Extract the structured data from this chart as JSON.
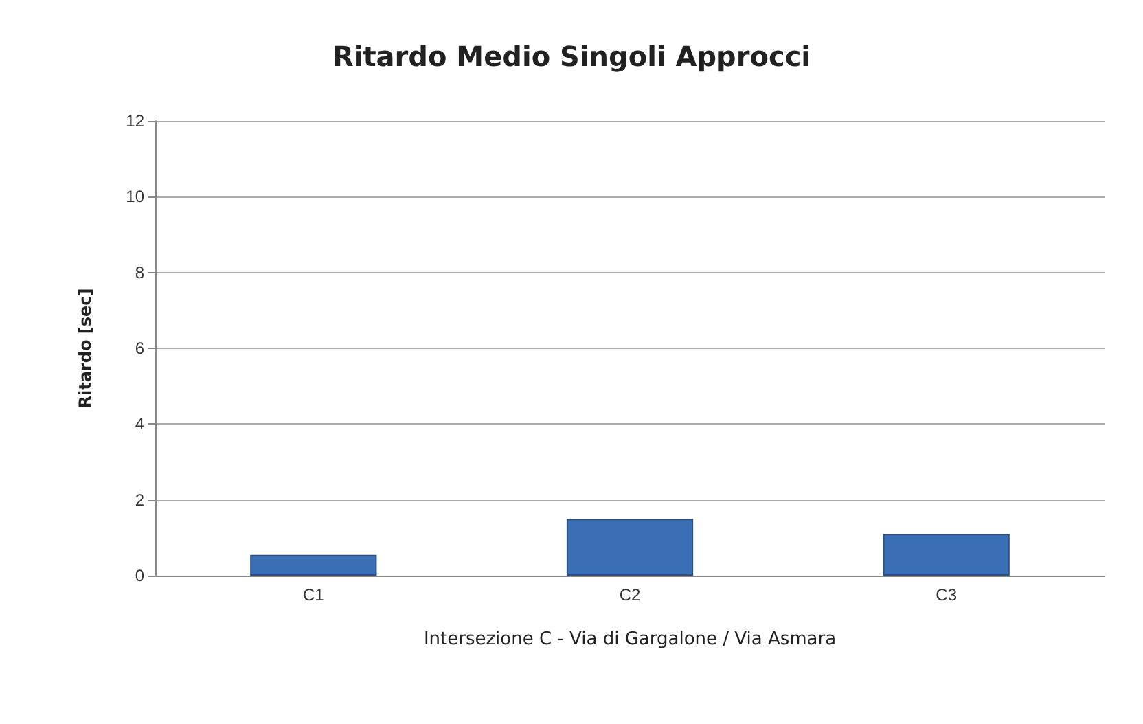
{
  "chart_data": {
    "type": "bar",
    "title": "Ritardo Medio Singoli Approcci",
    "xlabel": "Intersezione C - Via di Gargalone / Via Asmara",
    "ylabel": "Ritardo [sec]",
    "categories": [
      "C1",
      "C2",
      "C3"
    ],
    "values": [
      0.55,
      1.5,
      1.1
    ],
    "color": "#3a6fb5",
    "ylim": [
      0,
      12
    ],
    "yticks": [
      0,
      2,
      4,
      6,
      8,
      10,
      12
    ],
    "grid": "y"
  }
}
